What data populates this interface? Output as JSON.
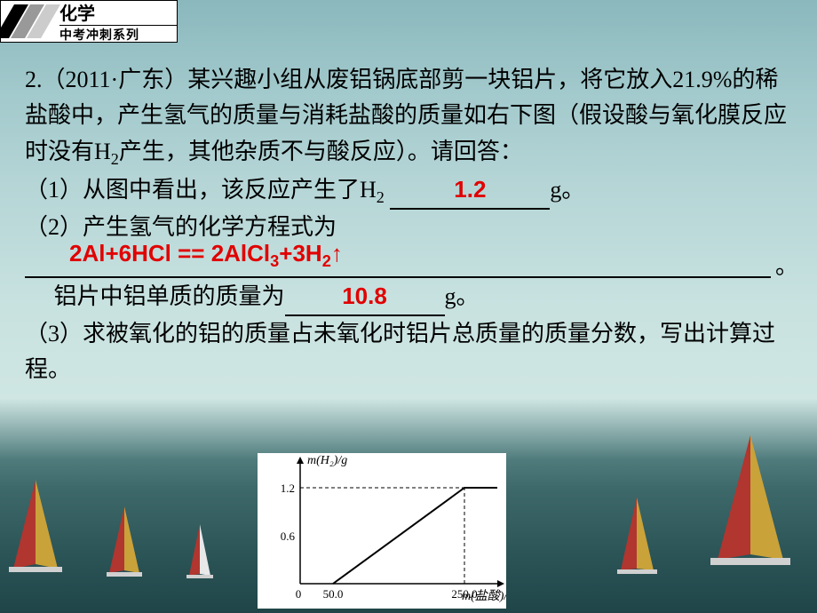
{
  "badge": {
    "line1": "化学",
    "line2": "中考冲刺系列"
  },
  "problem": {
    "stem_a": "2.（2011·广东）某兴趣小组从废铝锅底部剪一块铝片，将它放入21.9%的稀盐酸中，产生氢气的质量与消耗盐酸的质量如右下图（假设酸与氧化膜反应时没有H",
    "stem_b": "产生，其他杂质不与酸反应）。请回答：",
    "q1_a": "（1）从图中看出，该反应产生了H",
    "q1_b": "g。",
    "ans1": "1.2",
    "q2": "（2）产生氢气的化学方程式为",
    "ans2": "2Al+6HCl == 2AlCl",
    "ans2_b": "+3H",
    "ans2_c": "↑",
    "period": "。",
    "q2_line2_a": "铝片中铝单质的质量为",
    "ans3": "10.8",
    "q2_line2_b": "g。",
    "q3": "（3）求被氧化的铝的质量占未氧化时铝片总质量的质量分数，写出计算过程。"
  },
  "chart": {
    "type": "line",
    "x_label": "m(盐酸)/g",
    "y_label": "m(H₂)/g",
    "x_ticks": [
      0,
      50.0,
      250.0
    ],
    "y_ticks": [
      0.6,
      1.2
    ],
    "xlim": [
      0,
      300
    ],
    "ylim": [
      0,
      1.5
    ],
    "axis_color": "#000000",
    "line_color": "#000000",
    "dash_color": "#000000",
    "background_color": "#ffffff",
    "line_width": 2,
    "label_fontsize": 14,
    "tick_fontsize": 13,
    "data_points": [
      {
        "x": 50.0,
        "y": 0.0
      },
      {
        "x": 250.0,
        "y": 1.2
      },
      {
        "x": 300.0,
        "y": 1.2
      }
    ],
    "dash_lines": [
      {
        "from": {
          "x": 0,
          "y": 1.2
        },
        "to": {
          "x": 250.0,
          "y": 1.2
        }
      },
      {
        "from": {
          "x": 250.0,
          "y": 0
        },
        "to": {
          "x": 250.0,
          "y": 1.2
        }
      }
    ]
  },
  "sails": {
    "colors": {
      "red": "#b0362f",
      "yellow": "#c9a23a",
      "white": "#e8e8e8",
      "dark": "#2a2a2a",
      "board": "#d0d0d0"
    }
  }
}
